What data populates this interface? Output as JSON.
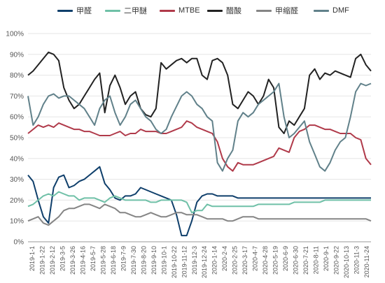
{
  "chart_data": {
    "type": "line",
    "title": "",
    "xlabel": "",
    "ylabel": "",
    "ylim": [
      0,
      100
    ],
    "y_ticks": [
      "0%",
      "10%",
      "20%",
      "30%",
      "40%",
      "50%",
      "60%",
      "70%",
      "80%",
      "90%",
      "100%"
    ],
    "grid": true,
    "legend_position": "top",
    "x_labels": [
      "2019-1-1",
      "2019-1-22",
      "2019-2-12",
      "2019-3-5",
      "2019-3-26",
      "2019-4-16",
      "2019-5-7",
      "2019-5-28",
      "2019-6-18",
      "2019-7-9",
      "2019-7-30",
      "2019-8-20",
      "2019-9-10",
      "2019-10-1",
      "2019-10-22",
      "2019-11-12",
      "2019-12-3",
      "2019-12-24",
      "2020-1-14",
      "2020-2-4",
      "2020-2-25",
      "2020-3-17",
      "2020-4-7",
      "2020-4-28",
      "2020-5-19",
      "2020-6-9",
      "2020-6-30",
      "2020-7-21",
      "2020-8-11",
      "2020-9-1",
      "2020-9-22",
      "2020-10-13",
      "2020-11-3",
      "2020-11-24"
    ],
    "series": [
      {
        "name": "甲醛",
        "color": "#0f3f6b",
        "values": [
          32,
          29,
          20,
          12,
          9,
          26,
          31,
          32,
          26,
          27,
          29,
          30,
          32,
          34,
          36,
          28,
          25,
          21,
          20,
          22,
          22,
          23,
          26,
          25,
          24,
          23,
          22,
          21,
          20,
          13,
          3,
          3,
          10,
          19,
          22,
          23,
          23,
          22,
          22,
          22,
          22,
          21,
          21,
          21,
          21,
          21,
          21,
          21,
          21,
          21,
          21,
          21,
          21,
          21,
          21,
          21,
          21,
          21,
          21,
          21,
          21,
          21,
          21,
          21,
          21,
          21,
          21,
          21
        ]
      },
      {
        "name": "二甲醚",
        "color": "#6fc0a7",
        "values": [
          17,
          18,
          20,
          22,
          23,
          22,
          24,
          23,
          22,
          22,
          20,
          21,
          21,
          21,
          20,
          19,
          21,
          22,
          21,
          20,
          20,
          20,
          20,
          20,
          19,
          19,
          20,
          20,
          20,
          20,
          20,
          19,
          14,
          15,
          15,
          18,
          17,
          17,
          17,
          17,
          17,
          17,
          17,
          17,
          17,
          18,
          18,
          18,
          18,
          18,
          18,
          18,
          19,
          19,
          19,
          19,
          19,
          19,
          20,
          20,
          20,
          20,
          20,
          20,
          20,
          20,
          20,
          20
        ]
      },
      {
        "name": "MTBE",
        "color": "#b03a4a",
        "values": [
          52,
          54,
          56,
          55,
          56,
          55,
          57,
          56,
          55,
          54,
          54,
          53,
          53,
          52,
          51,
          51,
          51,
          52,
          53,
          51,
          52,
          52,
          54,
          53,
          53,
          53,
          52,
          52,
          53,
          54,
          55,
          58,
          57,
          55,
          54,
          53,
          52,
          48,
          40,
          36,
          34,
          38,
          37,
          37,
          37,
          38,
          39,
          40,
          41,
          45,
          44,
          43,
          50,
          53,
          54,
          56,
          56,
          55,
          54,
          54,
          53,
          52,
          52,
          52,
          50,
          49,
          40,
          37
        ]
      },
      {
        "name": "醋酸",
        "color": "#222222",
        "values": [
          80,
          82,
          85,
          88,
          91,
          90,
          87,
          74,
          68,
          64,
          66,
          70,
          74,
          78,
          81,
          62,
          75,
          80,
          74,
          66,
          70,
          72,
          64,
          61,
          60,
          64,
          86,
          83,
          85,
          87,
          88,
          86,
          88,
          88,
          80,
          78,
          87,
          88,
          86,
          80,
          66,
          64,
          68,
          72,
          70,
          66,
          70,
          78,
          74,
          55,
          52,
          58,
          56,
          60,
          64,
          80,
          83,
          78,
          81,
          80,
          82,
          81,
          80,
          79,
          88,
          90,
          85,
          82
        ]
      },
      {
        "name": "甲缩醛",
        "color": "#858585",
        "values": [
          10,
          11,
          12,
          9,
          8,
          10,
          12,
          15,
          16,
          16,
          17,
          18,
          18,
          17,
          16,
          18,
          17,
          16,
          14,
          14,
          13,
          12,
          12,
          13,
          14,
          13,
          12,
          12,
          13,
          14,
          14,
          13,
          13,
          13,
          12,
          11,
          11,
          11,
          11,
          10,
          10,
          11,
          12,
          12,
          12,
          11,
          11,
          11,
          11,
          11,
          11,
          11,
          11,
          11,
          11,
          11,
          11,
          11,
          11,
          11,
          11,
          11,
          11,
          11,
          11,
          11,
          11,
          10
        ]
      },
      {
        "name": "DMF",
        "color": "#61818a",
        "values": [
          70,
          56,
          60,
          66,
          70,
          71,
          69,
          70,
          70,
          68,
          66,
          64,
          60,
          56,
          64,
          68,
          70,
          62,
          56,
          60,
          66,
          68,
          64,
          60,
          58,
          54,
          52,
          54,
          60,
          65,
          70,
          72,
          70,
          66,
          64,
          60,
          58,
          38,
          34,
          40,
          44,
          58,
          62,
          60,
          62,
          66,
          68,
          70,
          72,
          76,
          60,
          50,
          52,
          55,
          58,
          48,
          42,
          36,
          34,
          38,
          44,
          48,
          50,
          60,
          72,
          76,
          75,
          76
        ]
      }
    ]
  }
}
